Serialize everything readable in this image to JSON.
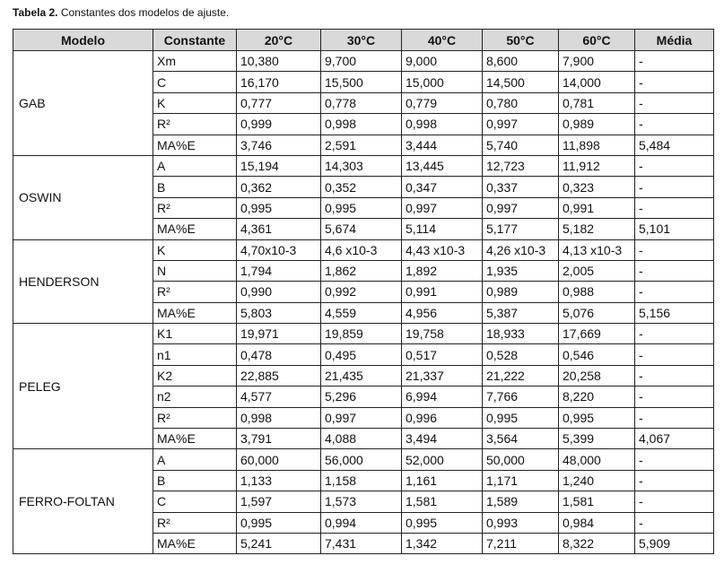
{
  "caption": {
    "label": "Tabela 2.",
    "text": "Constantes dos modelos de ajuste."
  },
  "table": {
    "header": [
      "Modelo",
      "Constante",
      "20°C",
      "30°C",
      "40°C",
      "50°C",
      "60°C",
      "Média"
    ],
    "groups": [
      {
        "model": "GAB",
        "rows": [
          [
            "Xm",
            "10,380",
            "9,700",
            "9,000",
            "8,600",
            "7,900",
            "-"
          ],
          [
            "C",
            "16,170",
            "15,500",
            "15,000",
            "14,500",
            "14,000",
            "-"
          ],
          [
            "K",
            "0,777",
            "0,778",
            "0,779",
            "0,780",
            "0,781",
            "-"
          ],
          [
            "R²",
            "0,999",
            "0,998",
            "0,998",
            "0,997",
            "0,989",
            "-"
          ],
          [
            "MA%E",
            "3,746",
            "2,591",
            "3,444",
            "5,740",
            "11,898",
            "5,484"
          ]
        ]
      },
      {
        "model": "OSWIN",
        "rows": [
          [
            "A",
            "15,194",
            "14,303",
            "13,445",
            "12,723",
            "11,912",
            "-"
          ],
          [
            "B",
            "0,362",
            "0,352",
            "0,347",
            "0,337",
            "0,323",
            "-"
          ],
          [
            "R²",
            "0,995",
            "0,995",
            "0,997",
            "0,997",
            "0,991",
            "-"
          ],
          [
            "MA%E",
            "4,361",
            "5,674",
            "5,114",
            "5,177",
            "5,182",
            "5,101"
          ]
        ]
      },
      {
        "model": "HENDERSON",
        "rows": [
          [
            "K",
            "4,70x10-3",
            "4,6 x10-3",
            "4,43 x10-3",
            "4,26 x10-3",
            "4,13 x10-3",
            "-"
          ],
          [
            "N",
            "1,794",
            "1,862",
            "1,892",
            "1,935",
            "2,005",
            "-"
          ],
          [
            "R²",
            "0,990",
            "0,992",
            "0,991",
            "0,989",
            "0,988",
            "-"
          ],
          [
            "MA%E",
            "5,803",
            "4,559",
            "4,956",
            "5,387",
            "5,076",
            "5,156"
          ]
        ]
      },
      {
        "model": "PELEG",
        "rows": [
          [
            "K1",
            "19,971",
            "19,859",
            "19,758",
            "18,933",
            "17,669",
            "-"
          ],
          [
            "n1",
            "0,478",
            "0,495",
            "0,517",
            "0,528",
            "0,546",
            "-"
          ],
          [
            "K2",
            "22,885",
            "21,435",
            "21,337",
            "21,222",
            "20,258",
            "-"
          ],
          [
            "n2",
            "4,577",
            "5,296",
            "6,994",
            "7,766",
            "8,220",
            "-"
          ],
          [
            "R²",
            "0,998",
            "0,997",
            "0,996",
            "0,995",
            "0,995",
            "-"
          ],
          [
            "MA%E",
            "3,791",
            "4,088",
            "3,494",
            "3,564",
            "5,399",
            "4,067"
          ]
        ]
      },
      {
        "model": "FERRO-FOLTAN",
        "rows": [
          [
            "A",
            "60,000",
            "56,000",
            "52,000",
            "50,000",
            "48,000",
            "-"
          ],
          [
            "B",
            "1,133",
            "1,158",
            "1,161",
            "1,171",
            "1,240",
            "-"
          ],
          [
            "C",
            "1,597",
            "1,573",
            "1,581",
            "1,589",
            "1,581",
            "-"
          ],
          [
            "R²",
            "0,995",
            "0,994",
            "0,995",
            "0,993",
            "0,984",
            "-"
          ],
          [
            "MA%E",
            "5,241",
            "7,431",
            "1,342",
            "7,211",
            "8,322",
            "5,909"
          ]
        ]
      }
    ]
  }
}
